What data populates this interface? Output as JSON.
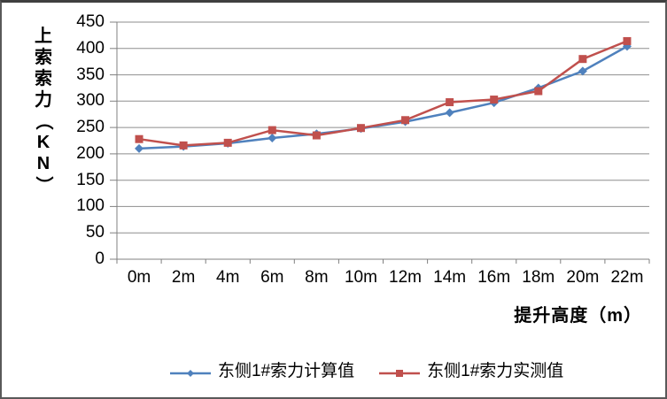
{
  "frame": {
    "background": "#FFFFFF",
    "border_color": "#595959"
  },
  "chart_data": {
    "type": "line",
    "title": "",
    "ylabel": "上索索力（KN）",
    "xlabel": "提升高度（m）",
    "categories": [
      "0m",
      "2m",
      "4m",
      "6m",
      "8m",
      "10m",
      "12m",
      "14m",
      "16m",
      "18m",
      "20m",
      "22m"
    ],
    "series": [
      {
        "name": "东侧1#索力计算值",
        "color": "#4F81BD",
        "marker": "diamond",
        "values": [
          210,
          214,
          220,
          230,
          238,
          248,
          261,
          278,
          297,
          325,
          357,
          404
        ]
      },
      {
        "name": "东侧1#索力实测值",
        "color": "#C0504D",
        "marker": "square",
        "values": [
          228,
          216,
          221,
          245,
          235,
          249,
          264,
          298,
          303,
          319,
          380,
          414
        ]
      }
    ],
    "ylim": [
      0,
      450
    ],
    "ytick_step": 50,
    "y_ticks": [
      "0",
      "50",
      "100",
      "150",
      "200",
      "250",
      "300",
      "350",
      "400",
      "450"
    ],
    "grid": "horizontal-gridlines-on",
    "legend_position": "bottom",
    "axis_color": "#808080",
    "gridline_color": "#8E8E8E",
    "text_color": "#000000"
  }
}
